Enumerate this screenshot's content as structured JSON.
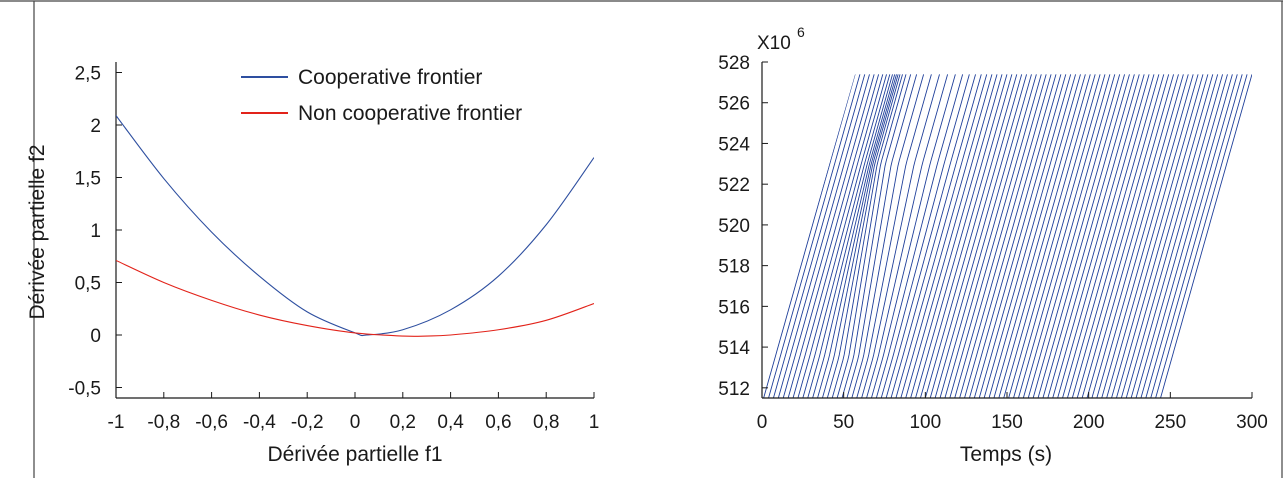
{
  "colors": {
    "cooperative": "#2e4fa0",
    "non_cooperative": "#e2231a",
    "right_series": "#1f3f9a",
    "axis": "#1a1a1a"
  },
  "chart_data": [
    {
      "type": "line",
      "xlabel": "Dérivée partielle f1",
      "ylabel": "Dérivée partielle f2",
      "xlim": [
        -1,
        1
      ],
      "ylim": [
        -0.6,
        2.6
      ],
      "x_ticks": [
        -1,
        -0.8,
        -0.6,
        -0.4,
        -0.2,
        0,
        0.2,
        0.4,
        0.6,
        0.8,
        1
      ],
      "x_tick_labels": [
        "-1",
        "-0,8",
        "-0,6",
        "-0,4",
        "-0,2",
        "0",
        "0,2",
        "0,4",
        "0,6",
        "0,8",
        "1"
      ],
      "y_ticks": [
        -0.5,
        0,
        0.5,
        1,
        1.5,
        2,
        2.5
      ],
      "y_tick_labels": [
        "-0,5",
        "0",
        "0,5",
        "1",
        "1,5",
        "2",
        "2,5"
      ],
      "grid": false,
      "legend_position": "top-right",
      "series": [
        {
          "name": "Cooperative frontier",
          "x": [
            -1,
            -0.8,
            -0.6,
            -0.4,
            -0.2,
            0,
            0.05,
            0.2,
            0.4,
            0.6,
            0.8,
            1
          ],
          "y": [
            2.09,
            1.49,
            0.98,
            0.56,
            0.22,
            0.02,
            0.0,
            0.05,
            0.24,
            0.56,
            1.05,
            1.69
          ]
        },
        {
          "name": "Non cooperative frontier",
          "x": [
            -1,
            -0.8,
            -0.6,
            -0.4,
            -0.2,
            0,
            0.2,
            0.3,
            0.4,
            0.6,
            0.8,
            1
          ],
          "y": [
            0.71,
            0.5,
            0.33,
            0.19,
            0.09,
            0.02,
            -0.01,
            -0.01,
            0.0,
            0.05,
            0.14,
            0.3
          ]
        }
      ]
    },
    {
      "type": "line",
      "xlabel": "Temps (s)",
      "ylabel": "",
      "y_multiplier_label": "X10",
      "y_multiplier_exponent": "6",
      "xlim": [
        0,
        300
      ],
      "ylim": [
        511.5,
        528
      ],
      "x_ticks": [
        0,
        50,
        100,
        150,
        200,
        250,
        300
      ],
      "x_tick_labels": [
        "0",
        "50",
        "100",
        "150",
        "200",
        "250",
        "300"
      ],
      "y_ticks": [
        512,
        514,
        516,
        518,
        520,
        522,
        524,
        526,
        528
      ],
      "y_tick_labels": [
        "512",
        "514",
        "516",
        "518",
        "520",
        "522",
        "524",
        "526",
        "528"
      ],
      "grid": false,
      "pattern": {
        "description_values": "many parallel rising traces from 511.5 to 527.4, each with a slope of about 0.28 per second, new traces starting about every 3 s; traces flattened between values 513.5 and 523 for start times near 70 to 110 s",
        "min_value": 511.5,
        "max_value": 527.4,
        "trace_duration_s": 56,
        "trace_spacing_s": 3,
        "trace_count": 100,
        "envelope": {
          "start_x": 0,
          "start_y": 511.5,
          "top_x": 57,
          "top_y": 527.4
        },
        "shift_band": {
          "y_low": 513.5,
          "y_high": 523,
          "center_x": 88,
          "shift_s": 14
        }
      }
    }
  ]
}
